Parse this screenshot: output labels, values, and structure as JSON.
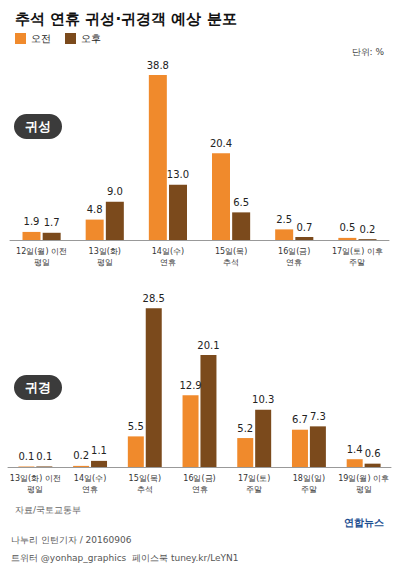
{
  "title": "추석 연휴 귀성·귀경객 예상 분포",
  "unit": "단위: %",
  "source": "자료/국토교통부",
  "credits": [
    "나누리 인턴기자 / 20160906",
    "트위터 @yonhap_graphics  페이스북 tuney.kr/LeYN1"
  ],
  "logo": "연합뉴스",
  "chart_data": [
    {
      "type": "bar",
      "title": "귀성",
      "categories": [
        "12일(월) 이전\n평일",
        "13일(화)\n평일",
        "14일(수)\n연휴",
        "15일(목)\n추석",
        "16일(금)\n연휴",
        "17일(토) 이후\n주말"
      ],
      "series": [
        {
          "name": "오전",
          "color": "#f08a2c",
          "values": [
            1.9,
            4.8,
            38.8,
            20.4,
            2.5,
            0.5
          ],
          "value_labels": [
            "1.9",
            "4.8",
            "38.8",
            "20.4",
            "2.5",
            "0.5"
          ]
        },
        {
          "name": "오후",
          "color": "#7b4a1c",
          "values": [
            1.7,
            9.0,
            13.0,
            6.5,
            0.7,
            0.2
          ],
          "value_labels": [
            "1.7",
            "9.0",
            "13.0",
            "6.5",
            "0.7",
            "0.2"
          ]
        }
      ],
      "ylim": [
        0,
        40
      ],
      "yticks": [
        0,
        40
      ],
      "grid": false,
      "data_labels": true,
      "tick_labels": "x",
      "legend": "upper left"
    },
    {
      "type": "bar",
      "title": "귀경",
      "categories": [
        "13일(화) 이전\n평일",
        "14일(수)\n연휴",
        "15일(목)\n추석",
        "16일(금)\n연휴",
        "17일(토)\n주말",
        "18일(일)\n주말",
        "19일(월) 이후\n평일"
      ],
      "series": [
        {
          "name": "오전",
          "color": "#f08a2c",
          "values": [
            0.1,
            0.2,
            5.5,
            12.9,
            5.2,
            6.7,
            1.4
          ],
          "value_labels": [
            "0.1",
            "0.2",
            "5.5",
            "12.9",
            "5.2",
            "6.7",
            "1.4"
          ]
        },
        {
          "name": "오후",
          "color": "#7b4a1c",
          "values": [
            0.1,
            1.1,
            28.5,
            20.1,
            10.3,
            7.3,
            0.6
          ],
          "value_labels": [
            "0.1",
            "1.1",
            "28.5",
            "20.1",
            "10.3",
            "7.3",
            "0.6"
          ]
        }
      ],
      "ylim": [
        0,
        30
      ],
      "yticks": [
        0,
        30
      ],
      "grid": false,
      "data_labels": true,
      "tick_labels": "x"
    }
  ]
}
